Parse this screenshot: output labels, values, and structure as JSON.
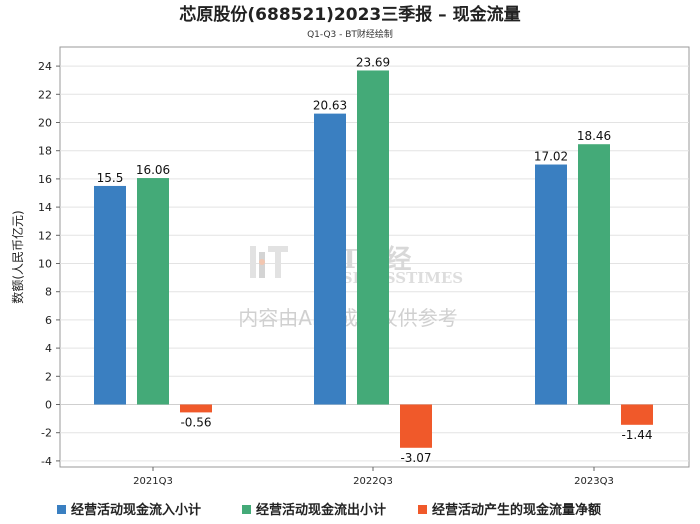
{
  "chart_data": {
    "type": "bar",
    "title": "芯原股份(688521)2023三季报 – 现金流量",
    "subtitle": "Q1-Q3 - BT财经绘制",
    "ylabel": "数额(人民币亿元)",
    "xlabel": "",
    "ylim": [
      -4,
      25
    ],
    "yticks": [
      -4,
      -2,
      0,
      2,
      4,
      6,
      8,
      10,
      12,
      14,
      16,
      18,
      20,
      22,
      24
    ],
    "grid": true,
    "legend_position": "bottom",
    "categories": [
      "2021Q3",
      "2022Q3",
      "2023Q3"
    ],
    "series": [
      {
        "name": "经营活动现金流入小计",
        "color": "#3a7fc1",
        "values": [
          15.5,
          20.63,
          17.02
        ],
        "labels": [
          "15.5",
          "20.63",
          "17.02"
        ]
      },
      {
        "name": "经营活动现金流出小计",
        "color": "#44aa78",
        "values": [
          16.06,
          23.69,
          18.46
        ],
        "labels": [
          "16.06",
          "23.69",
          "18.46"
        ]
      },
      {
        "name": "经营活动产生的现金流量净额",
        "color": "#f0592a",
        "values": [
          -0.56,
          -3.07,
          -1.44
        ],
        "labels": [
          "-0.56",
          "-3.07",
          "-1.44"
        ]
      }
    ]
  },
  "watermark": {
    "logo_text": "BT财经",
    "logo_sub": "BUSINESSTIMES",
    "notice": "内容由AI生成，仅供参考"
  }
}
